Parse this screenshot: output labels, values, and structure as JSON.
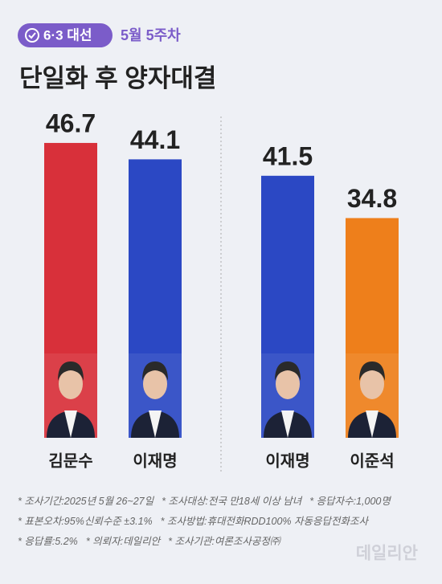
{
  "header": {
    "badge": "6·3 대선",
    "week": "5월 5주차",
    "title": "단일화 후 양자대결"
  },
  "chart_data": [
    {
      "type": "bar",
      "categories": [
        "김문수",
        "이재명"
      ],
      "values": [
        46.7,
        44.1
      ],
      "colors": [
        "#d8303a",
        "#2b48c4"
      ]
    },
    {
      "type": "bar",
      "categories": [
        "이재명",
        "이준석"
      ],
      "values": [
        41.5,
        34.8
      ],
      "colors": [
        "#2b48c4",
        "#ee7f1b"
      ]
    }
  ],
  "footnotes": [
    [
      "* 조사기간:2025년 5월 26~27일",
      "* 조사대상:전국 만18세 이상 남녀",
      "* 응답자수:1,000명"
    ],
    [
      "* 표본오차:95%신뢰수준 ±3.1%",
      "* 조사방법:휴대전화RDD100% 자동응답전화조사"
    ],
    [
      "* 응답률:5.2%",
      "* 의뢰자:데일리안",
      "* 조사기관:여론조사공정㈜"
    ]
  ],
  "watermark": "데일리안"
}
